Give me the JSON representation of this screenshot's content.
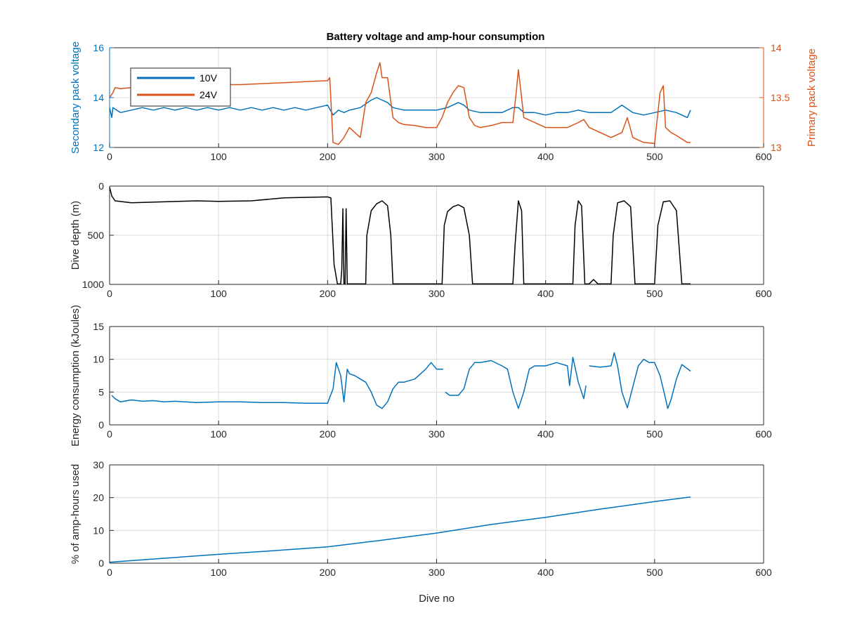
{
  "figure": {
    "title": "Battery voltage and amp-hour consumption"
  },
  "colors": {
    "blue": "#0072bd",
    "orange": "#d95319",
    "black": "#000000",
    "grid": "#dcdcdc"
  },
  "chart_data": [
    {
      "type": "line",
      "title": "Battery voltage and amp-hour consumption",
      "xlabel": "",
      "ylabel": "Secondary pack voltage",
      "ylabel_right": "Primary pack voltage",
      "xlim": [
        0,
        600
      ],
      "ylim": [
        12,
        16
      ],
      "ylim_right": [
        13,
        14
      ],
      "xticks": [
        0,
        100,
        200,
        300,
        400,
        500,
        600
      ],
      "yticks": [
        12,
        14,
        16
      ],
      "yticks_right": [
        13,
        13.5,
        14
      ],
      "grid": true,
      "legend": "top-left",
      "series": [
        {
          "name": "10V",
          "axis": "left",
          "color": "#0072bd",
          "x": [
            0,
            2,
            3,
            10,
            20,
            30,
            40,
            50,
            60,
            70,
            80,
            90,
            100,
            110,
            120,
            130,
            140,
            150,
            160,
            170,
            180,
            190,
            200,
            205,
            210,
            215,
            220,
            230,
            240,
            245,
            250,
            255,
            260,
            270,
            280,
            290,
            300,
            310,
            320,
            325,
            330,
            340,
            350,
            360,
            370,
            375,
            380,
            390,
            400,
            410,
            420,
            430,
            440,
            450,
            460,
            470,
            480,
            490,
            500,
            510,
            520,
            530,
            533
          ],
          "y": [
            13.6,
            13.2,
            13.6,
            13.4,
            13.5,
            13.6,
            13.5,
            13.6,
            13.5,
            13.6,
            13.5,
            13.6,
            13.5,
            13.6,
            13.5,
            13.6,
            13.5,
            13.6,
            13.5,
            13.6,
            13.5,
            13.6,
            13.7,
            13.3,
            13.5,
            13.4,
            13.5,
            13.6,
            13.9,
            14.0,
            13.9,
            13.8,
            13.6,
            13.5,
            13.5,
            13.5,
            13.5,
            13.6,
            13.8,
            13.7,
            13.5,
            13.4,
            13.4,
            13.4,
            13.6,
            13.6,
            13.4,
            13.4,
            13.3,
            13.4,
            13.4,
            13.5,
            13.4,
            13.4,
            13.4,
            13.7,
            13.4,
            13.3,
            13.4,
            13.5,
            13.4,
            13.2,
            13.5
          ]
        },
        {
          "name": "24V",
          "axis": "right",
          "color": "#d95319",
          "x": [
            0,
            3,
            5,
            10,
            20,
            40,
            60,
            80,
            100,
            120,
            140,
            160,
            180,
            200,
            202,
            205,
            210,
            215,
            220,
            230,
            235,
            240,
            245,
            248,
            250,
            255,
            260,
            265,
            270,
            280,
            290,
            300,
            305,
            310,
            315,
            320,
            325,
            330,
            335,
            340,
            350,
            360,
            370,
            373,
            375,
            378,
            380,
            390,
            400,
            410,
            420,
            430,
            435,
            440,
            450,
            460,
            470,
            475,
            480,
            490,
            500,
            505,
            508,
            510,
            515,
            520,
            530,
            533
          ],
          "y": [
            13.5,
            13.55,
            13.6,
            13.59,
            13.6,
            13.6,
            13.61,
            13.62,
            13.63,
            13.63,
            13.64,
            13.65,
            13.66,
            13.67,
            13.7,
            13.05,
            13.03,
            13.1,
            13.2,
            13.1,
            13.45,
            13.55,
            13.75,
            13.85,
            13.7,
            13.7,
            13.3,
            13.25,
            13.23,
            13.22,
            13.2,
            13.2,
            13.3,
            13.45,
            13.55,
            13.62,
            13.6,
            13.3,
            13.22,
            13.2,
            13.22,
            13.25,
            13.25,
            13.55,
            13.78,
            13.5,
            13.3,
            13.25,
            13.2,
            13.2,
            13.2,
            13.25,
            13.28,
            13.2,
            13.15,
            13.1,
            13.15,
            13.3,
            13.1,
            13.05,
            13.04,
            13.55,
            13.62,
            13.2,
            13.15,
            13.12,
            13.05,
            13.05
          ]
        }
      ]
    },
    {
      "type": "line",
      "title": "",
      "xlabel": "",
      "ylabel": "Dive depth (m)",
      "xlim": [
        0,
        600
      ],
      "ylim": [
        0,
        1000
      ],
      "y_reversed": true,
      "xticks": [
        0,
        100,
        200,
        300,
        400,
        500,
        600
      ],
      "yticks": [
        0,
        500,
        1000
      ],
      "grid": true,
      "series": [
        {
          "color": "#000000",
          "x": [
            0,
            2,
            5,
            20,
            50,
            80,
            100,
            130,
            160,
            200,
            203,
            206,
            209,
            212,
            213,
            214,
            215,
            216,
            217,
            218,
            219,
            220,
            225,
            230,
            235,
            236,
            240,
            245,
            250,
            255,
            258,
            260,
            262,
            300,
            305,
            307,
            310,
            315,
            320,
            325,
            330,
            333,
            336,
            370,
            372,
            375,
            378,
            380,
            383,
            425,
            427,
            430,
            433,
            436,
            440,
            444,
            448,
            460,
            462,
            466,
            472,
            478,
            482,
            485,
            500,
            503,
            508,
            514,
            520,
            525,
            533
          ],
          "y": [
            10,
            100,
            150,
            170,
            160,
            150,
            155,
            150,
            120,
            110,
            120,
            800,
            995,
            995,
            850,
            230,
            995,
            995,
            230,
            995,
            995,
            995,
            995,
            995,
            995,
            500,
            250,
            180,
            150,
            200,
            500,
            995,
            995,
            995,
            995,
            400,
            260,
            210,
            190,
            220,
            500,
            995,
            995,
            995,
            600,
            150,
            250,
            995,
            995,
            995,
            400,
            150,
            200,
            995,
            995,
            950,
            995,
            995,
            500,
            170,
            150,
            210,
            995,
            995,
            995,
            400,
            160,
            150,
            250,
            995,
            995
          ]
        }
      ]
    },
    {
      "type": "line",
      "title": "",
      "xlabel": "",
      "ylabel": "Energy consumption (kJoules)",
      "xlim": [
        0,
        600
      ],
      "ylim": [
        0,
        15
      ],
      "xticks": [
        0,
        100,
        200,
        300,
        400,
        500,
        600
      ],
      "yticks": [
        0,
        5,
        10,
        15
      ],
      "grid": true,
      "series": [
        {
          "color": "#0072bd",
          "x": [
            2,
            5,
            10,
            20,
            30,
            40,
            50,
            60,
            80,
            100,
            120,
            140,
            160,
            180,
            200,
            205,
            208,
            212,
            215,
            218,
            220,
            225,
            230,
            235,
            240,
            245,
            250,
            255,
            260,
            265,
            270,
            280,
            290,
            295,
            300,
            306
          ],
          "y": [
            4.5,
            4.0,
            3.5,
            3.8,
            3.6,
            3.7,
            3.5,
            3.6,
            3.4,
            3.5,
            3.5,
            3.4,
            3.4,
            3.3,
            3.3,
            5.5,
            9.5,
            7.5,
            3.5,
            8.5,
            7.8,
            7.5,
            7.0,
            6.5,
            5.0,
            3.0,
            2.5,
            3.5,
            5.5,
            6.5,
            6.5,
            7.0,
            8.5,
            9.5,
            8.5,
            8.5
          ]
        },
        {
          "color": "#0072bd",
          "x": [
            308,
            312,
            320,
            325,
            330,
            335,
            340,
            350,
            360,
            365,
            370,
            375,
            380,
            385,
            390,
            400,
            410,
            420,
            422,
            425,
            430,
            435,
            437
          ],
          "y": [
            5.0,
            4.5,
            4.5,
            5.5,
            8.5,
            9.5,
            9.5,
            9.8,
            9.0,
            8.5,
            5.0,
            2.5,
            5.0,
            8.5,
            9.0,
            9.0,
            9.5,
            9.0,
            6.0,
            10.3,
            6.5,
            4.0,
            6.0
          ]
        },
        {
          "color": "#0072bd",
          "x": [
            440,
            450,
            460,
            463,
            466,
            470,
            475,
            478,
            485,
            490,
            495,
            500,
            505,
            510,
            512,
            515,
            520,
            525,
            533
          ],
          "y": [
            9.0,
            8.8,
            9.0,
            11.0,
            9.0,
            5.0,
            2.6,
            4.5,
            9.0,
            10.0,
            9.5,
            9.5,
            7.5,
            4.0,
            2.5,
            3.8,
            7.0,
            9.2,
            8.2
          ]
        }
      ]
    },
    {
      "type": "line",
      "title": "",
      "xlabel": "Dive no",
      "ylabel": "% of amp-hours used",
      "xlim": [
        0,
        600
      ],
      "ylim": [
        0,
        30
      ],
      "xticks": [
        0,
        100,
        200,
        300,
        400,
        500,
        600
      ],
      "yticks": [
        0,
        10,
        20,
        30
      ],
      "grid": true,
      "series": [
        {
          "color": "#0072bd",
          "x": [
            0,
            50,
            100,
            150,
            200,
            250,
            300,
            350,
            400,
            450,
            500,
            533
          ],
          "y": [
            0.3,
            1.5,
            2.7,
            3.8,
            5.0,
            7.0,
            9.2,
            11.8,
            14.0,
            16.5,
            18.8,
            20.2
          ]
        }
      ]
    }
  ]
}
